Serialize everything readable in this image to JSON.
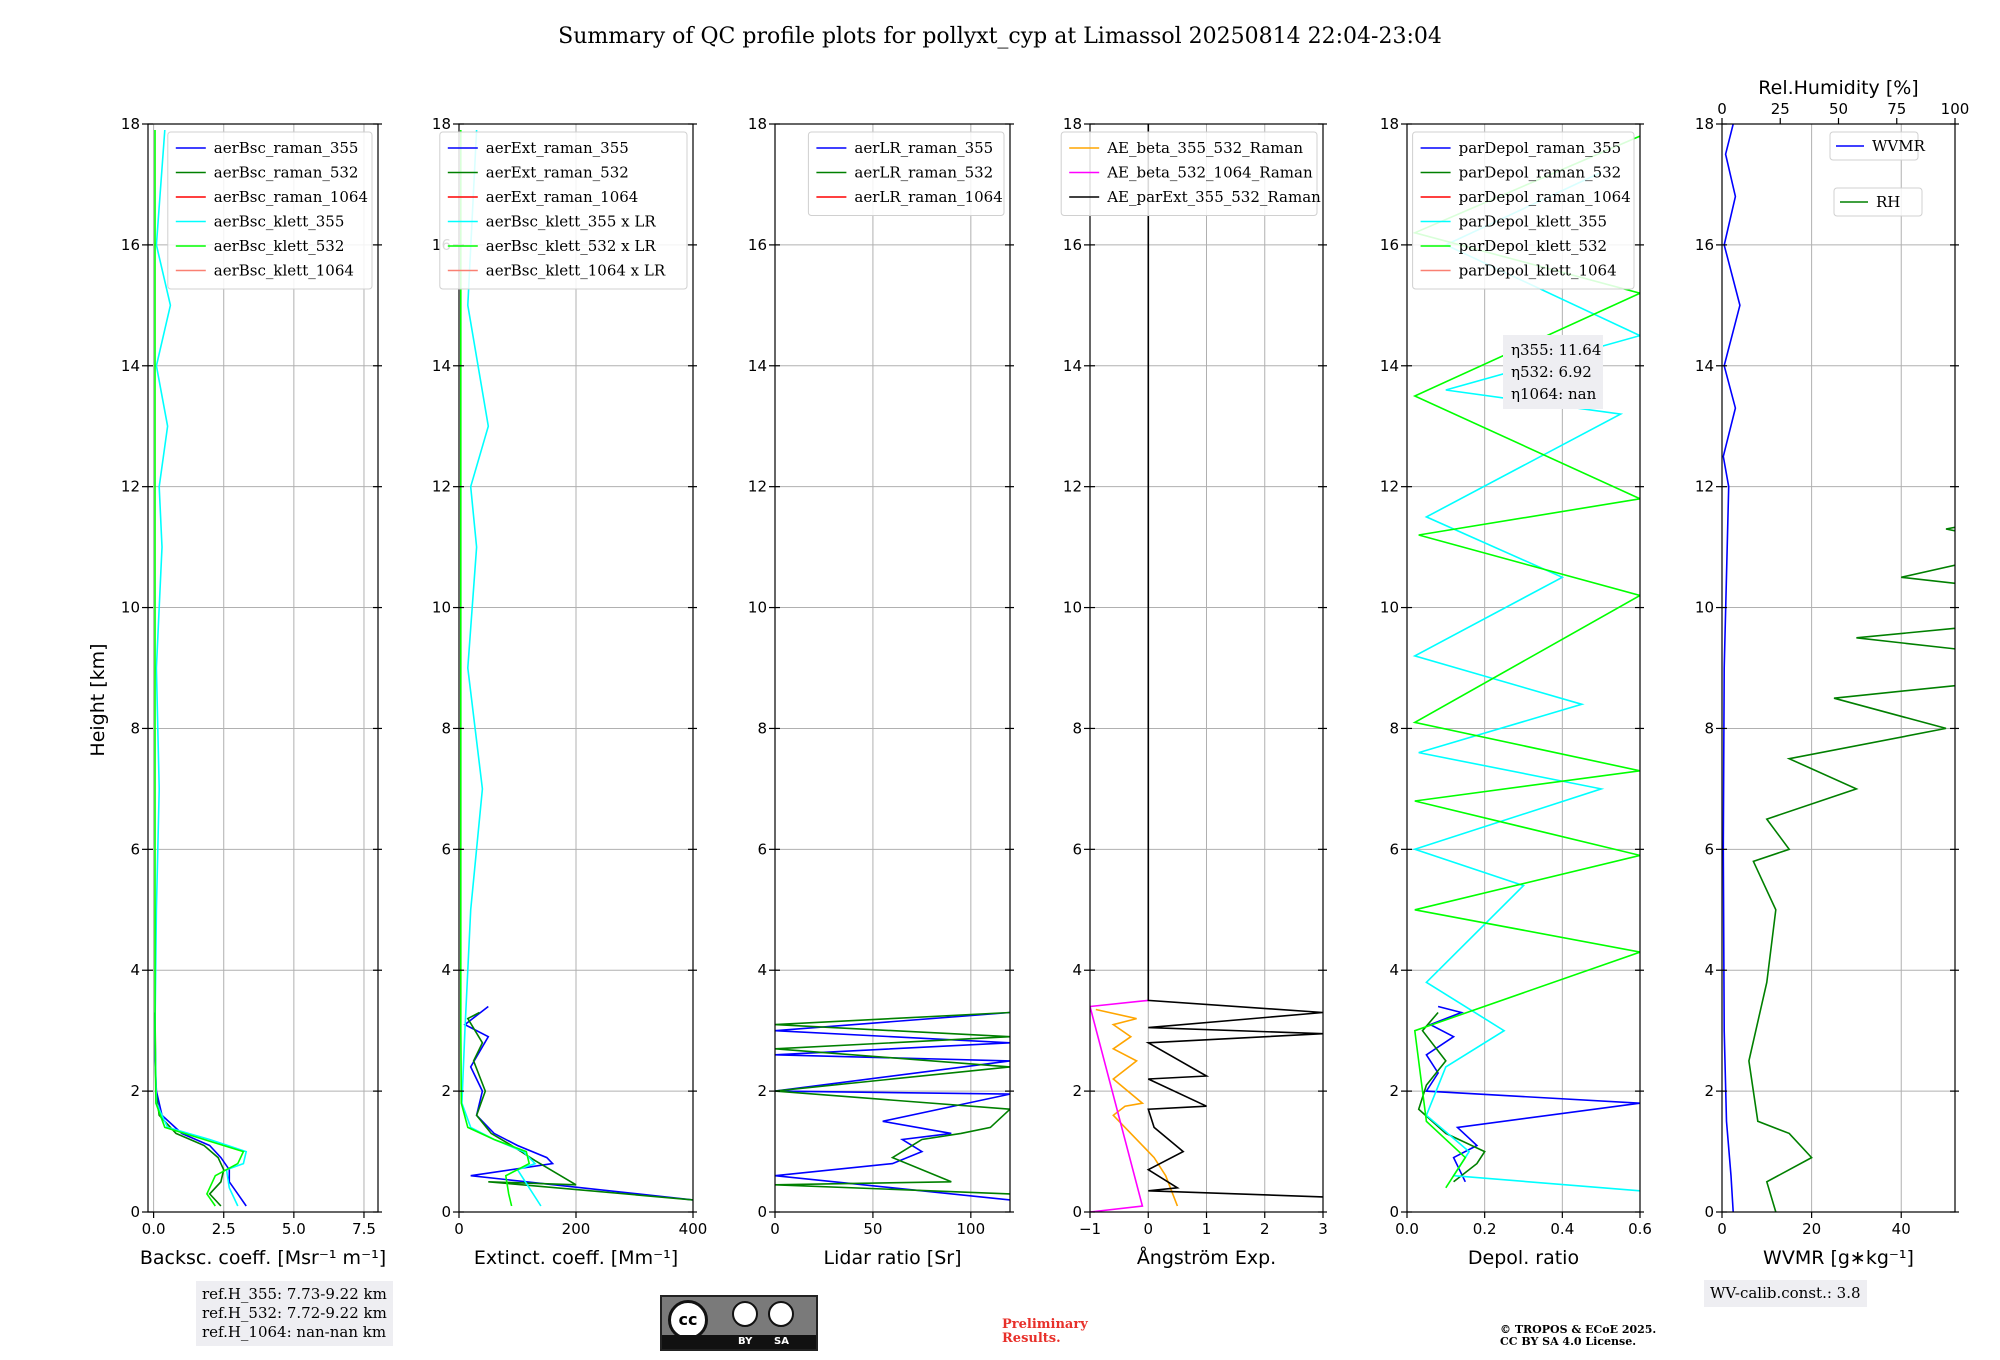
{
  "figure": {
    "title": "Summary of QC profile plots for pollyxt_cyp at Limassol 20250814 22:04-23:04",
    "y_label": "Height [km]",
    "ref_heights": [
      "ref.H_355: 7.73-9.22 km",
      "ref.H_532: 7.72-9.22 km",
      "ref.H_1064: nan-nan km"
    ],
    "wv_calib": "WV-calib.const.: 3.8",
    "preliminary": "Preliminary\nResults.",
    "copyright": [
      "© TROPOS & ECoE 2025.",
      "CC BY SA 4.0 License."
    ],
    "license_badge": {
      "cc": "cc",
      "by": "BY",
      "sa": "SA"
    },
    "colors": {
      "blue": "#0000ff",
      "green": "#008000",
      "red": "#ff0000",
      "cyan": "#00ffff",
      "lime": "#00ff00",
      "salmon": "#fa8072",
      "orange": "#ffa500",
      "magenta": "#ff00ff",
      "black": "#000000"
    }
  },
  "chart_data": [
    {
      "type": "line",
      "xlabel": "Backsc. coeff. [Msr$^{-1}$ m$^{-1}$]",
      "xlabel_display": "Backsc. coeff. [Msr⁻¹ m⁻¹]",
      "ylabel": "Height [km]",
      "xlim": [
        -0.2,
        8.0
      ],
      "ylim": [
        0,
        18
      ],
      "xticks": [
        0.0,
        2.5,
        5.0,
        7.5
      ],
      "xticklabels": [
        "0.0",
        "2.5",
        "5.0",
        "7.5"
      ],
      "yticks": [
        0,
        2,
        4,
        6,
        8,
        10,
        12,
        14,
        16,
        18
      ],
      "grid": true,
      "legend": "top-right",
      "series": [
        {
          "name": "aerBsc_raman_355",
          "color": "#0000ff",
          "x": [
            3.3,
            3.0,
            2.7,
            2.7,
            2.4,
            2.0,
            1.0,
            0.3,
            0.1,
            0.05,
            0.05
          ],
          "y": [
            0.1,
            0.3,
            0.5,
            0.7,
            0.9,
            1.1,
            1.3,
            1.6,
            2.0,
            2.5,
            3.3
          ]
        },
        {
          "name": "aerBsc_raman_532",
          "color": "#008000",
          "x": [
            2.4,
            2.0,
            2.4,
            2.5,
            2.3,
            1.8,
            0.8,
            0.2,
            0.08,
            0.05
          ],
          "y": [
            0.1,
            0.3,
            0.5,
            0.7,
            0.9,
            1.1,
            1.3,
            1.6,
            2.0,
            3.3
          ]
        },
        {
          "name": "aerBsc_raman_1064",
          "color": "#ff0000",
          "x": [],
          "y": []
        },
        {
          "name": "aerBsc_klett_355",
          "color": "#00ffff",
          "x": [
            3.0,
            2.7,
            2.6,
            3.2,
            3.3,
            2.0,
            0.5,
            0.1,
            0.05,
            0.1,
            0.2,
            0.1,
            0.3,
            0.2,
            0.5,
            0.1,
            0.6,
            0.1,
            0.4
          ],
          "y": [
            0.1,
            0.4,
            0.7,
            0.8,
            1.0,
            1.2,
            1.4,
            1.8,
            3.0,
            5.0,
            7.0,
            9.0,
            11.0,
            12.0,
            13.0,
            14.0,
            15.0,
            16.0,
            17.9
          ]
        },
        {
          "name": "aerBsc_klett_532",
          "color": "#00ff00",
          "x": [
            2.2,
            1.9,
            2.2,
            3.0,
            3.2,
            1.8,
            0.4,
            0.08,
            0.05,
            0.05,
            0.05,
            0.05
          ],
          "y": [
            0.1,
            0.3,
            0.6,
            0.8,
            1.0,
            1.2,
            1.4,
            1.8,
            3.0,
            6.0,
            12.0,
            17.9
          ]
        },
        {
          "name": "aerBsc_klett_1064",
          "color": "#fa8072",
          "x": [],
          "y": []
        }
      ],
      "notes": [
        "ref.H_355: 7.73-9.22 km",
        "ref.H_532: 7.72-9.22 km",
        "ref.H_1064: nan-nan km"
      ]
    },
    {
      "type": "line",
      "xlabel": "Extinct. coeff. [Mm$^{-1}$]",
      "xlabel_display": "Extinct. coeff. [Mm⁻¹]",
      "xlim": [
        0,
        400
      ],
      "ylim": [
        0,
        18
      ],
      "xticks": [
        0,
        200,
        400
      ],
      "xticklabels": [
        "0",
        "200",
        "400"
      ],
      "yticks": [
        0,
        2,
        4,
        6,
        8,
        10,
        12,
        14,
        16,
        18
      ],
      "grid": true,
      "legend": "top-right",
      "legend_hidden_labels": [
        "…00",
        "…R"
      ],
      "series": [
        {
          "name": "aerExt_raman_355",
          "color": "#0000ff",
          "x": [
            400,
            20,
            160,
            150,
            100,
            60,
            30,
            40,
            20,
            50,
            10,
            50
          ],
          "y": [
            0.2,
            0.6,
            0.8,
            0.9,
            1.1,
            1.3,
            1.6,
            2.0,
            2.4,
            2.9,
            3.1,
            3.4
          ]
        },
        {
          "name": "aerExt_raman_532",
          "color": "#008000",
          "x": [
            400,
            50,
            200,
            130,
            90,
            55,
            30,
            45,
            25,
            40,
            15,
            35
          ],
          "y": [
            0.2,
            0.5,
            0.45,
            0.85,
            1.1,
            1.3,
            1.6,
            2.0,
            2.5,
            2.8,
            3.2,
            3.3
          ]
        },
        {
          "name": "aerExt_raman_1064",
          "color": "#ff0000",
          "x": [],
          "y": []
        },
        {
          "name": "aerBsc_klett_355 x LR",
          "color": "#00ffff",
          "x": [
            140,
            120,
            100,
            130,
            110,
            60,
            20,
            5,
            10,
            20,
            40,
            15,
            30,
            20,
            50,
            15,
            30
          ],
          "y": [
            0.1,
            0.4,
            0.7,
            0.8,
            1.0,
            1.2,
            1.4,
            1.8,
            3.0,
            5.0,
            7.0,
            9.0,
            11.0,
            12.0,
            13.0,
            15.0,
            17.9
          ]
        },
        {
          "name": "aerBsc_klett_532 x LR",
          "color": "#00ff00",
          "x": [
            90,
            85,
            80,
            120,
            115,
            60,
            15,
            4,
            3,
            3,
            3
          ],
          "y": [
            0.1,
            0.3,
            0.6,
            0.8,
            1.0,
            1.2,
            1.4,
            1.8,
            3.0,
            8.0,
            17.9
          ]
        },
        {
          "name": "aerBsc_klett_1064 x LR",
          "color": "#fa8072",
          "x": [],
          "y": []
        }
      ]
    },
    {
      "type": "line",
      "xlabel": "Lidar ratio [Sr]",
      "xlim": [
        0,
        120
      ],
      "ylim": [
        0,
        18
      ],
      "xticks": [
        0,
        50,
        100
      ],
      "xticklabels": [
        "0",
        "50",
        "100"
      ],
      "yticks": [
        0,
        2,
        4,
        6,
        8,
        10,
        12,
        14,
        16,
        18
      ],
      "grid": true,
      "legend": "top-right",
      "series": [
        {
          "name": "aerLR_raman_355",
          "color": "#0000ff",
          "x": [
            120,
            0,
            60,
            75,
            65,
            90,
            55,
            120,
            0,
            120,
            0,
            120,
            0,
            120
          ],
          "y": [
            0.2,
            0.6,
            0.8,
            1.0,
            1.2,
            1.3,
            1.5,
            1.95,
            2.0,
            2.5,
            2.6,
            2.8,
            3.0,
            3.3
          ]
        },
        {
          "name": "aerLR_raman_532",
          "color": "#008000",
          "x": [
            120,
            0,
            90,
            60,
            75,
            95,
            110,
            120,
            0,
            120,
            0,
            120,
            0,
            120
          ],
          "y": [
            0.3,
            0.45,
            0.5,
            0.9,
            1.2,
            1.3,
            1.4,
            1.7,
            2.0,
            2.4,
            2.7,
            2.9,
            3.1,
            3.3
          ]
        },
        {
          "name": "aerLR_raman_1064",
          "color": "#ff0000",
          "x": [],
          "y": []
        }
      ]
    },
    {
      "type": "line",
      "xlabel": "Ångström Exp.",
      "xlim": [
        -1,
        3
      ],
      "ylim": [
        0,
        18
      ],
      "xticks": [
        -1,
        0,
        1,
        2,
        3
      ],
      "xticklabels": [
        "−1",
        "0",
        "1",
        "2",
        "3"
      ],
      "yticks": [
        0,
        2,
        4,
        6,
        8,
        10,
        12,
        14,
        16,
        18
      ],
      "grid": true,
      "legend": "top-right",
      "series": [
        {
          "name": "AE_beta_355_532_Raman",
          "color": "#ffa500",
          "x": [
            0.5,
            0.3,
            0.1,
            -0.3,
            -0.6,
            -0.4,
            -0.1,
            -0.6,
            -0.2,
            -0.6,
            -0.3,
            -0.6,
            -0.2,
            -0.9
          ],
          "y": [
            0.1,
            0.6,
            0.9,
            1.3,
            1.6,
            1.75,
            1.8,
            2.2,
            2.5,
            2.7,
            2.9,
            3.1,
            3.2,
            3.35
          ]
        },
        {
          "name": "AE_beta_532_1064_Raman",
          "color": "#ff00ff",
          "x": [
            -1,
            -0.1,
            -1,
            0
          ],
          "y": [
            0.0,
            0.1,
            3.4,
            3.5
          ]
        },
        {
          "name": "AE_parExt_355_532_Raman",
          "color": "#000000",
          "x": [
            3,
            0,
            0.5,
            0,
            0.6,
            0.1,
            0,
            1.0,
            0,
            1.0,
            0,
            3,
            0,
            3,
            0,
            0
          ],
          "y": [
            0.25,
            0.35,
            0.4,
            0.7,
            1.0,
            1.4,
            1.7,
            1.75,
            2.2,
            2.25,
            2.8,
            2.95,
            3.05,
            3.3,
            3.5,
            18.0
          ]
        }
      ]
    },
    {
      "type": "line",
      "xlabel": "Depol. ratio",
      "xlim": [
        0,
        0.6
      ],
      "ylim": [
        0,
        18
      ],
      "xticks": [
        0.0,
        0.2,
        0.4,
        0.6
      ],
      "xticklabels": [
        "0.0",
        "0.2",
        "0.4",
        "0.6"
      ],
      "yticks": [
        0,
        2,
        4,
        6,
        8,
        10,
        12,
        14,
        16,
        18
      ],
      "grid": true,
      "legend": "top-right",
      "series": [
        {
          "name": "parDepol_raman_355",
          "color": "#0000ff",
          "x": [
            0.15,
            0.12,
            0.18,
            0.13,
            0.6,
            0.05,
            0.08,
            0.05,
            0.12,
            0.06,
            0.14,
            0.08
          ],
          "y": [
            0.5,
            0.9,
            1.1,
            1.4,
            1.8,
            2.0,
            2.3,
            2.6,
            2.9,
            3.1,
            3.3,
            3.4
          ]
        },
        {
          "name": "parDepol_raman_532",
          "color": "#008000",
          "x": [
            0.12,
            0.18,
            0.2,
            0.1,
            0.03,
            0.05,
            0.1,
            0.04,
            0.08
          ],
          "y": [
            0.5,
            0.8,
            1.0,
            1.3,
            1.7,
            2.1,
            2.5,
            3.0,
            3.3
          ]
        },
        {
          "name": "parDepol_raman_1064",
          "color": "#ff0000",
          "x": [],
          "y": []
        },
        {
          "name": "parDepol_klett_355",
          "color": "#00ffff",
          "x": [
            0.6,
            0.12,
            0.16,
            0.05,
            0.1,
            0.25,
            0.05,
            0.3,
            0.02,
            0.5,
            0.03,
            0.45,
            0.02,
            0.4,
            0.05,
            0.55,
            0.1,
            0.6,
            0.1,
            0.5
          ],
          "y": [
            0.35,
            0.6,
            1.0,
            1.6,
            2.4,
            3.0,
            3.8,
            5.4,
            6.0,
            7.0,
            7.6,
            8.4,
            9.2,
            10.5,
            11.5,
            13.2,
            13.6,
            14.5,
            16.0,
            17.2
          ]
        },
        {
          "name": "parDepol_klett_532",
          "color": "#00ff00",
          "x": [
            0.1,
            0.15,
            0.05,
            0.02,
            0.6,
            0.02,
            0.6,
            0.02,
            0.6,
            0.02,
            0.6,
            0.03,
            0.6,
            0.02,
            0.6,
            0.02,
            0.6
          ],
          "y": [
            0.4,
            0.9,
            1.5,
            3.0,
            4.3,
            5.0,
            5.9,
            6.8,
            7.3,
            8.1,
            10.2,
            11.2,
            11.8,
            13.5,
            15.2,
            16.2,
            17.8
          ]
        },
        {
          "name": "parDepol_klett_1064",
          "color": "#fa8072",
          "x": [],
          "y": []
        }
      ],
      "notes": [
        "η355: 11.64",
        "η532: 6.92",
        "η1064: nan"
      ]
    },
    {
      "type": "line",
      "xlabel": "WVMR [$g*kg^{-1}$]",
      "xlabel_display": "WVMR [g∗kg⁻¹]",
      "xlim": [
        0,
        52
      ],
      "ylim": [
        0,
        18
      ],
      "xticks": [
        0,
        20,
        40
      ],
      "xticklabels": [
        "0",
        "20",
        "40"
      ],
      "x2label": "Rel.Humidity [%]",
      "x2lim": [
        0,
        100
      ],
      "x2ticks": [
        0,
        25,
        50,
        75,
        100
      ],
      "x2ticklabels": [
        "0",
        "25",
        "50",
        "75",
        "100"
      ],
      "yticks": [
        0,
        2,
        4,
        6,
        8,
        10,
        12,
        14,
        16,
        18
      ],
      "grid": true,
      "series": [
        {
          "name": "WVMR",
          "color": "#0000ff",
          "x": [
            2.5,
            2.0,
            1.0,
            0.5,
            0.3,
            0.5,
            1.5,
            0.3,
            3.0,
            0.5,
            4.0,
            0.5,
            3.0,
            0.8,
            2.5
          ],
          "y": [
            0.0,
            0.6,
            1.5,
            3.0,
            6.0,
            9.0,
            12.0,
            12.5,
            13.3,
            14.0,
            15.0,
            16.0,
            16.8,
            17.5,
            18.0
          ]
        },
        {
          "name": "RH",
          "color": "#008000",
          "x": [
            12,
            10,
            20,
            15,
            8,
            6,
            10,
            12,
            7,
            15,
            10,
            30,
            15,
            50,
            25,
            90,
            30,
            100,
            40,
            70,
            50,
            100,
            60,
            100,
            75
          ],
          "y": [
            0.0,
            0.5,
            0.9,
            1.3,
            1.5,
            2.5,
            3.8,
            5.0,
            5.8,
            6.0,
            6.5,
            7.0,
            7.5,
            8.0,
            8.5,
            9.0,
            9.5,
            10.0,
            10.5,
            11.0,
            11.3,
            12.0,
            12.6,
            13.5,
            13.8
          ]
        }
      ]
    }
  ]
}
